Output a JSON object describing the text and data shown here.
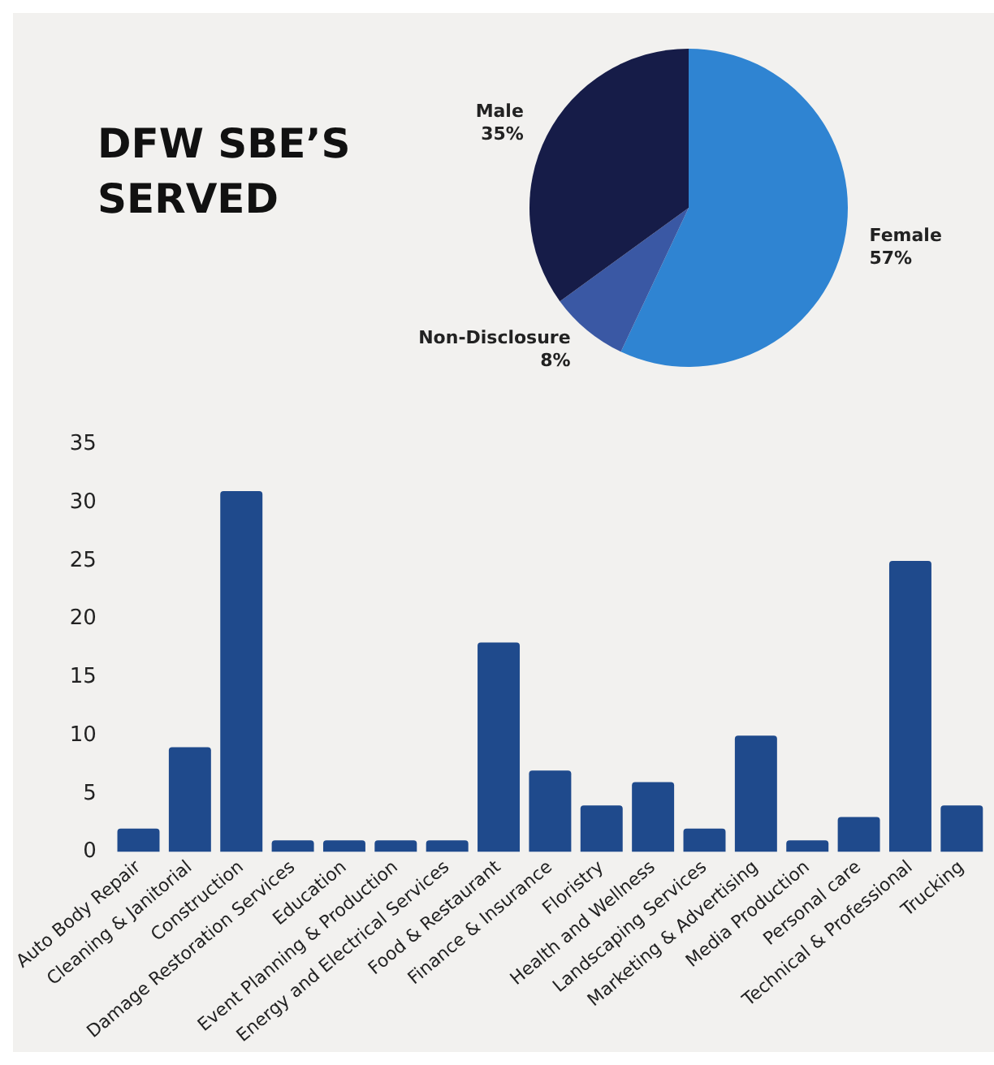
{
  "chart_data": [
    {
      "type": "pie",
      "title": "DFW SBE’S SERVED",
      "categories": [
        "Female",
        "Non-Disclosure",
        "Male"
      ],
      "values": [
        57,
        8,
        35
      ],
      "value_labels": [
        "57%",
        "8%",
        "35%"
      ],
      "colors": [
        "#2f84d2",
        "#3a58a4",
        "#161c48"
      ]
    },
    {
      "type": "bar",
      "categories": [
        "Auto Body Repair",
        "Cleaning & Janitorial",
        "Construction",
        "Damage Restoration Services",
        "Education",
        "Event Planning & Production",
        "Energy and Electrical Services",
        "Food & Restaurant",
        "Finance & Insurance",
        "Floristry",
        "Health and Wellness",
        "Landscaping Services",
        "Marketing & Advertising",
        "Media Production",
        "Personal care",
        "Technical & Professional",
        "Trucking"
      ],
      "values": [
        2,
        9,
        31,
        1,
        1,
        1,
        1,
        18,
        7,
        4,
        6,
        2,
        10,
        1,
        3,
        25,
        4
      ],
      "color": "#1f4a8c",
      "ylim": [
        0,
        35
      ],
      "yticks": [
        0,
        5,
        10,
        15,
        20,
        25,
        30,
        35
      ],
      "grid": false
    }
  ]
}
